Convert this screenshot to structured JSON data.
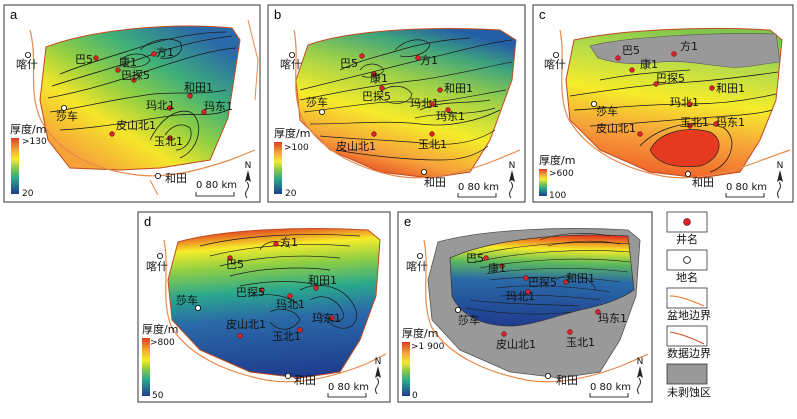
{
  "colors": {
    "basin_boundary": "#e8894a",
    "data_boundary": "#cc4422",
    "well": "#d9232a",
    "uneroded": "#999999"
  },
  "maps": [
    {
      "panel_label": "a",
      "legend_title": "厚度/m",
      "legend_max": ">130",
      "legend_min": "20",
      "places": [
        "喀什",
        "莎车",
        "和田"
      ],
      "wells": [
        "巴5",
        "康1",
        "巴探5",
        "方1",
        "和田1",
        "玛北1",
        "玛东1",
        "皮山北1",
        "玉北1"
      ],
      "scale_label": "0   80 km",
      "north": "N"
    },
    {
      "panel_label": "b",
      "legend_title": "厚度/m",
      "legend_max": ">100",
      "legend_min": "20",
      "places": [
        "喀什",
        "莎车",
        "和田"
      ],
      "wells": [
        "巴5",
        "康1",
        "方1",
        "巴探5",
        "和田1",
        "玛北1",
        "玛东1",
        "皮山北1",
        "玉北1"
      ],
      "scale_label": "0   80 km",
      "north": "N"
    },
    {
      "panel_label": "c",
      "legend_title": "厚度/m",
      "legend_max": ">600",
      "legend_min": "100",
      "places": [
        "喀什",
        "莎车",
        "和田"
      ],
      "wells": [
        "巴5",
        "康1",
        "方1",
        "巴探5",
        "和田1",
        "玛北1",
        "皮山北1",
        "玉北1",
        "玛东1"
      ],
      "scale_label": "0   80 km",
      "north": "N"
    },
    {
      "panel_label": "d",
      "legend_title": "厚度/m",
      "legend_max": ">800",
      "legend_min": "50",
      "places": [
        "喀什",
        "莎车",
        "和田"
      ],
      "wells": [
        "方1",
        "巴5",
        "巴探5",
        "和田1",
        "玛北1",
        "玛东1",
        "皮山北1",
        "玉北1"
      ],
      "scale_label": "0   80 km",
      "north": "N"
    },
    {
      "panel_label": "e",
      "legend_title": "厚度/m",
      "legend_max": ">1 900",
      "legend_min": "0",
      "places": [
        "喀什",
        "莎车",
        "和田"
      ],
      "wells": [
        "巴5",
        "康1",
        "巴探5",
        "和田1",
        "玛北1",
        "玛东1",
        "皮山北1",
        "玉北1"
      ],
      "scale_label": "0   80 km",
      "north": "N"
    }
  ],
  "key": {
    "well_label": "井名",
    "place_label": "地名",
    "basin_label": "盆地边界",
    "data_label": "数据边界",
    "uneroded_label": "未剥蚀区"
  }
}
